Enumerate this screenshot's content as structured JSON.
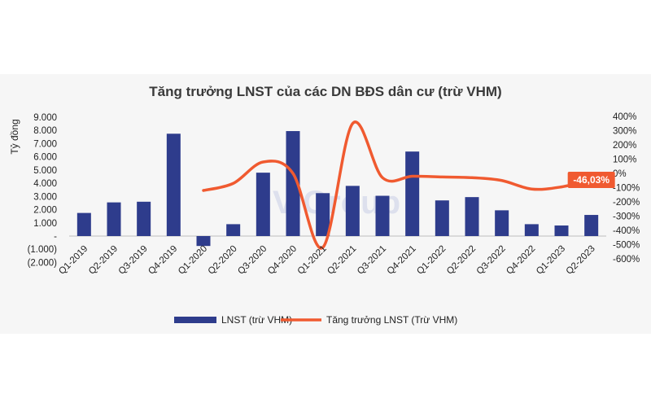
{
  "chart_data": {
    "type": "bar",
    "title": "Tăng trưởng LNST của các DN BĐS dân cư (trừ VHM)",
    "ylabel": "Tỷ đồng",
    "categories": [
      "Q1-2019",
      "Q2-2019",
      "Q3-2019",
      "Q4-2019",
      "Q1-2020",
      "Q2-2020",
      "Q3-2020",
      "Q4-2020",
      "Q1-2021",
      "Q2-2021",
      "Q3-2021",
      "Q4-2021",
      "Q1-2022",
      "Q2-2022",
      "Q3-2022",
      "Q4-2022",
      "Q1-2023",
      "Q2-2023"
    ],
    "series": [
      {
        "name": "LNST (trừ VHM)",
        "type": "bar",
        "axis": "left",
        "color": "#2e3c8c",
        "values": [
          1750,
          2550,
          2600,
          7750,
          -750,
          900,
          4800,
          7950,
          3250,
          3800,
          3050,
          6400,
          2700,
          2950,
          1950,
          900,
          800,
          1600
        ]
      },
      {
        "name": "Tăng trưởng LNST (Trừ VHM)",
        "type": "line",
        "axis": "right",
        "color": "#f05a30",
        "values": [
          null,
          null,
          null,
          null,
          -120,
          -70,
          80,
          0,
          -520,
          350,
          -30,
          -20,
          -25,
          -30,
          -50,
          -110,
          -95,
          -46.03
        ]
      }
    ],
    "y_left": {
      "min": -2000,
      "max": 9000,
      "ticks": [
        "9.000",
        "8.000",
        "7.000",
        "6.000",
        "5.000",
        "4.000",
        "3.000",
        "2.000",
        "1.000",
        "-",
        "(1.000)",
        "(2.000)"
      ]
    },
    "y_right": {
      "min": -600,
      "max": 400,
      "ticks": [
        "400%",
        "300%",
        "200%",
        "100%",
        "0%",
        "-100%",
        "-200%",
        "-300%",
        "-400%",
        "-500%",
        "-600%"
      ]
    },
    "annotation": {
      "label": "-46,03%",
      "color": "#f05a30"
    },
    "legend_position": "bottom",
    "grid": false
  },
  "watermark": "ViGroup"
}
